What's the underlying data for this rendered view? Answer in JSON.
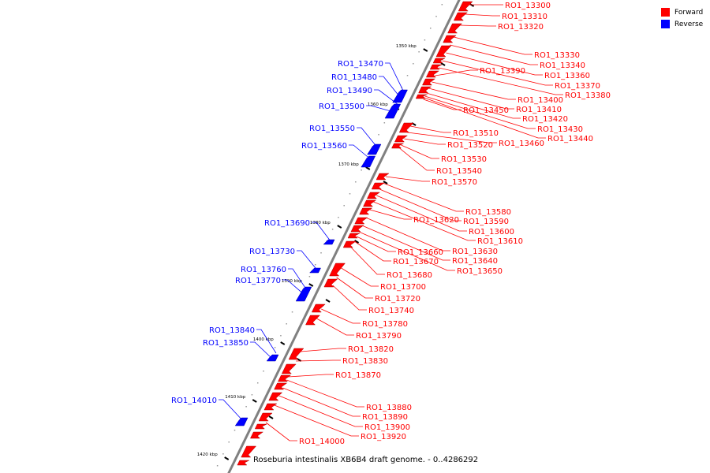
{
  "legend": [
    {
      "label": "Forward",
      "color": "#ff0000"
    },
    {
      "label": "Reverse",
      "color": "#0000ff"
    }
  ],
  "caption": "Roseburia intestinalis XB6B4 draft genome. - 0..4286292",
  "colors": {
    "forward": "#ff0000",
    "reverse": "#0000ff",
    "axis": "#808080",
    "leader_forward": "#ff0000",
    "leader_reverse": "#0000ff"
  },
  "scale_ticks": [
    "1350 kbp",
    "1360 kbp",
    "1370 kbp",
    "1380 kbp",
    "1390 kbp",
    "1400 kbp",
    "1410 kbp",
    "1420 kbp"
  ],
  "genes_forward": [
    "RO1_13300",
    "RO1_13310",
    "RO1_13320",
    "RO1_13330",
    "RO1_13340",
    "RO1_13360",
    "RO1_13370",
    "RO1_13380",
    "RO1_13390",
    "RO1_13400",
    "RO1_13410",
    "RO1_13420",
    "RO1_13430",
    "RO1_13440",
    "RO1_13450",
    "RO1_13460",
    "RO1_13510",
    "RO1_13520",
    "RO1_13530",
    "RO1_13540",
    "RO1_13570",
    "RO1_13580",
    "RO1_13590",
    "RO1_13600",
    "RO1_13610",
    "RO1_13620",
    "RO1_13630",
    "RO1_13640",
    "RO1_13650",
    "RO1_13660",
    "RO1_13670",
    "RO1_13680",
    "RO1_13700",
    "RO1_13720",
    "RO1_13740",
    "RO1_13780",
    "RO1_13790",
    "RO1_13820",
    "RO1_13830",
    "RO1_13870",
    "RO1_13880",
    "RO1_13890",
    "RO1_13900",
    "RO1_13920",
    "RO1_14000"
  ],
  "genes_reverse": [
    "RO1_13470",
    "RO1_13480",
    "RO1_13490",
    "RO1_13500",
    "RO1_13550",
    "RO1_13560",
    "RO1_13690",
    "RO1_13730",
    "RO1_13760",
    "RO1_13770",
    "RO1_13840",
    "RO1_13850",
    "RO1_14010"
  ]
}
